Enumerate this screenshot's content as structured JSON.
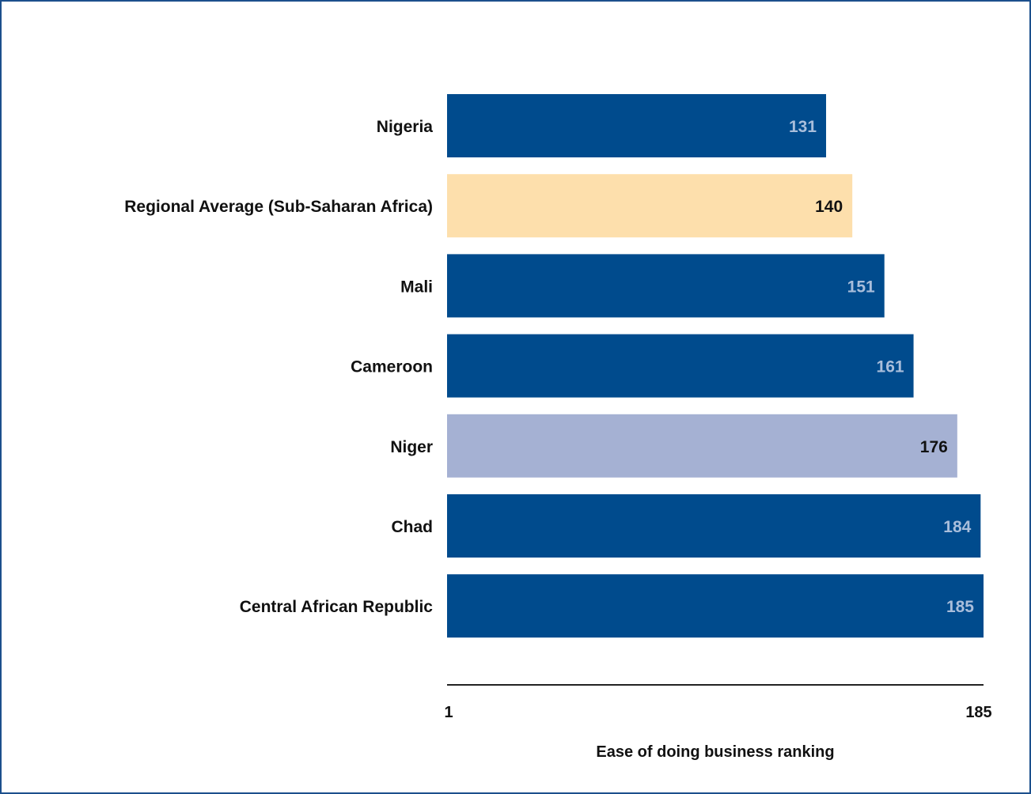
{
  "chart_data": {
    "type": "bar",
    "orientation": "horizontal",
    "categories": [
      "Nigeria",
      "Regional Average (Sub-Saharan Africa)",
      "Mali",
      "Cameroon",
      "Niger",
      "Chad",
      "Central African Republic"
    ],
    "values": [
      131,
      140,
      151,
      161,
      176,
      184,
      185
    ],
    "bar_colors": [
      "#004b8d",
      "#fddfac",
      "#004b8d",
      "#004b8d",
      "#a5b1d3",
      "#004b8d",
      "#004b8d"
    ],
    "value_label_colors": [
      "#a9bedb",
      "#111111",
      "#a9bedb",
      "#a9bedb",
      "#111111",
      "#a9bedb",
      "#a9bedb"
    ],
    "xlabel": "Ease of doing business ranking",
    "xlim": [
      1,
      185
    ],
    "xticks": [
      "1",
      "185"
    ],
    "grid": false,
    "frame_color": "#1c4f8c",
    "axis_color": "#222222"
  }
}
